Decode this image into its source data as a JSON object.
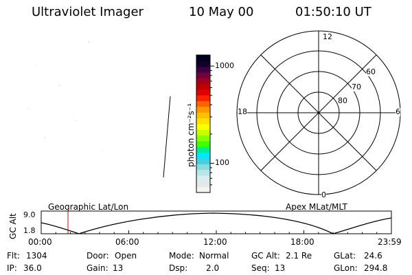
{
  "header": {
    "title": "Ultraviolet Imager",
    "date": "10 May 00",
    "time": "01:50:10 UT"
  },
  "colorbar": {
    "unit_label": "photon cm⁻²s⁻¹",
    "tick_labels": [
      "1000",
      "100"
    ],
    "tick_values": [
      1000,
      100
    ],
    "log_range": [
      50,
      1300
    ],
    "colors": [
      "#f4f4f4",
      "#e6e6e6",
      "#d8eef0",
      "#b8e6e8",
      "#88dce0",
      "#40d0e0",
      "#00e8ff",
      "#00ee90",
      "#40ff00",
      "#88ff00",
      "#c8ff00",
      "#ffff00",
      "#ffe000",
      "#ffc000",
      "#ff9800",
      "#ff6400",
      "#ff2000",
      "#e00000",
      "#c00000",
      "#a00020",
      "#700040",
      "#3c0040",
      "#10002a",
      "#000020"
    ]
  },
  "polar_plot": {
    "mlt_labels": [
      "12",
      "18",
      "6",
      "0"
    ],
    "lat_labels": [
      "60",
      "70",
      "80"
    ],
    "lat_circles": [
      60,
      70,
      80,
      90
    ]
  },
  "timeline": {
    "y_axis_label": "GC Alt",
    "y_ticks": [
      "9.0",
      "1.8"
    ],
    "y_range": [
      1.8,
      9.0
    ],
    "left_caption": "Geographic Lat/Lon",
    "right_caption": "Apex MLat/MLT",
    "x_ticks": [
      "00:00",
      "06:00",
      "12:00",
      "18:00",
      "23:59"
    ],
    "x_tick_hours": [
      0,
      6,
      12,
      18,
      23.98
    ],
    "current_hour": 1.836,
    "marker_color": "#cc0000"
  },
  "status": {
    "flt_label": "Flt:",
    "flt_value": "1304",
    "ip_label": "IP:",
    "ip_value": "36.0",
    "door_label": "Door:",
    "door_value": "Open",
    "gain_label": "Gain:",
    "gain_value": "13",
    "mode_label": "Mode:",
    "mode_value": "Normal",
    "dsp_label": "Dsp:",
    "dsp_value": "2.0",
    "gcalt_label": "GC Alt:",
    "gcalt_value": "2.1 Re",
    "seq_label": "Seq:",
    "seq_value": "13",
    "glat_label": "GLat:",
    "glat_value": "24.6",
    "glon_label": "GLon:",
    "glon_value": "294.8"
  }
}
